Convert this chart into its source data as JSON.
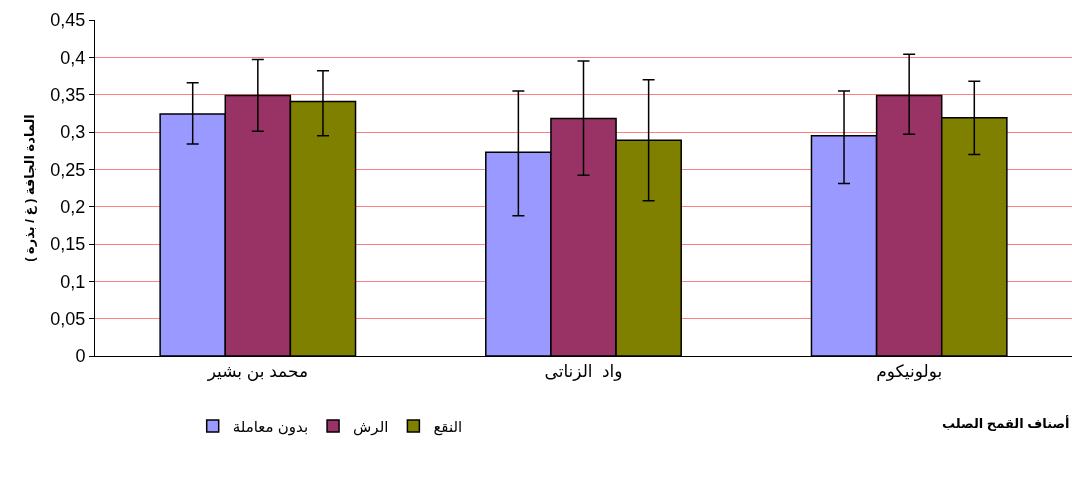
{
  "chart_data": {
    "type": "bar",
    "categories": [
      "محمد بن بشير",
      "واد  الزناتى",
      "بولونيكوم"
    ],
    "xlabel": "أصناف القمح الصلب",
    "ylabel": "المادة الجافة ( غ / بذرة )",
    "series": [
      {
        "name": "بدون معاملة",
        "color": "#9999ff",
        "values": [
          0.324,
          0.273,
          0.295
        ],
        "errors": [
          [
            0.284,
            0.366
          ],
          [
            0.188,
            0.355
          ],
          [
            0.231,
            0.355
          ]
        ]
      },
      {
        "name": "الرش",
        "color": "#993366",
        "values": [
          0.349,
          0.318,
          0.349
        ],
        "errors": [
          [
            0.301,
            0.397
          ],
          [
            0.242,
            0.395
          ],
          [
            0.297,
            0.404
          ]
        ]
      },
      {
        "name": "النقع",
        "color": "#808000",
        "values": [
          0.341,
          0.289,
          0.319
        ],
        "errors": [
          [
            0.295,
            0.382
          ],
          [
            0.208,
            0.37
          ],
          [
            0.27,
            0.368
          ]
        ]
      }
    ],
    "ylim": [
      0,
      0.45
    ],
    "yticks": [
      0,
      {
        "value": 0.05,
        "label": "0,05"
      },
      {
        "value": 0.1,
        "label": "0,1"
      },
      {
        "value": 0.15,
        "label": "0,15"
      },
      {
        "value": 0.2,
        "label": "0,2"
      },
      {
        "value": 0.25,
        "label": "0,25"
      },
      {
        "value": 0.3,
        "label": "0,3"
      },
      {
        "value": 0.35,
        "label": "0,35"
      },
      {
        "value": 0.4,
        "label": "0,4"
      },
      {
        "value": 0.45,
        "label": "0,45"
      }
    ],
    "grid": "y",
    "legend": "bottom left"
  }
}
